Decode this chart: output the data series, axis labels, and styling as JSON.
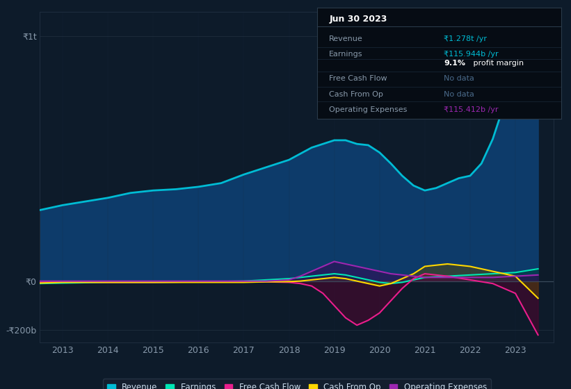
{
  "bg_color": "#0d1b2a",
  "chart_bg": "#0d1b2a",
  "grid_color": "#1e2d3d",
  "text_color": "#8899aa",
  "ylim": [
    -250000000000,
    1100000000000
  ],
  "xlim": [
    2012.5,
    2023.85
  ],
  "xticks": [
    2013,
    2014,
    2015,
    2016,
    2017,
    2018,
    2019,
    2020,
    2021,
    2022,
    2023
  ],
  "ytick_vals": [
    -200000000000,
    0,
    1000000000000
  ],
  "ytick_labels": [
    "-₹200b",
    "₹0",
    "₹1t"
  ],
  "legend_items": [
    {
      "label": "Revenue",
      "color": "#00bcd4"
    },
    {
      "label": "Earnings",
      "color": "#00e6b4"
    },
    {
      "label": "Free Cash Flow",
      "color": "#e91e8c"
    },
    {
      "label": "Cash From Op",
      "color": "#ffd700"
    },
    {
      "label": "Operating Expenses",
      "color": "#9c27b0"
    }
  ],
  "revenue_x": [
    2012.5,
    2013.0,
    2013.5,
    2014.0,
    2014.5,
    2015.0,
    2015.5,
    2016.0,
    2016.5,
    2017.0,
    2017.5,
    2018.0,
    2018.25,
    2018.5,
    2018.75,
    2019.0,
    2019.25,
    2019.5,
    2019.75,
    2020.0,
    2020.25,
    2020.5,
    2020.75,
    2021.0,
    2021.25,
    2021.5,
    2021.75,
    2022.0,
    2022.25,
    2022.5,
    2022.75,
    2023.0,
    2023.5
  ],
  "revenue_y": [
    290,
    310,
    325,
    340,
    360,
    370,
    375,
    385,
    400,
    435,
    465,
    495,
    520,
    545,
    560,
    575,
    575,
    560,
    555,
    525,
    480,
    430,
    390,
    370,
    380,
    400,
    420,
    430,
    480,
    580,
    720,
    870,
    1040
  ],
  "earnings_x": [
    2012.5,
    2013.0,
    2014.0,
    2015.0,
    2016.0,
    2017.0,
    2017.5,
    2018.0,
    2018.5,
    2018.75,
    2019.0,
    2019.25,
    2019.5,
    2019.75,
    2020.0,
    2020.25,
    2020.5,
    2020.75,
    2021.0,
    2021.5,
    2022.0,
    2022.5,
    2023.0,
    2023.5
  ],
  "earnings_y": [
    -10,
    -8,
    -5,
    -5,
    -3,
    0,
    5,
    10,
    20,
    25,
    30,
    25,
    15,
    5,
    -5,
    -10,
    -5,
    5,
    15,
    20,
    25,
    30,
    35,
    50
  ],
  "fcf_x": [
    2012.5,
    2013.0,
    2014.0,
    2015.0,
    2016.0,
    2017.0,
    2017.5,
    2018.0,
    2018.25,
    2018.5,
    2018.75,
    2019.0,
    2019.25,
    2019.5,
    2019.75,
    2020.0,
    2020.25,
    2020.5,
    2020.75,
    2021.0,
    2021.5,
    2022.0,
    2022.5,
    2023.0,
    2023.5
  ],
  "fcf_y": [
    -5,
    -3,
    -5,
    -5,
    -3,
    -3,
    -3,
    -5,
    -10,
    -20,
    -50,
    -100,
    -150,
    -180,
    -160,
    -130,
    -80,
    -30,
    10,
    30,
    20,
    5,
    -10,
    -50,
    -220
  ],
  "cfo_x": [
    2012.5,
    2013.0,
    2014.0,
    2015.0,
    2016.0,
    2017.0,
    2017.5,
    2018.0,
    2018.25,
    2018.5,
    2018.75,
    2019.0,
    2019.25,
    2019.5,
    2019.75,
    2020.0,
    2020.25,
    2020.5,
    2020.75,
    2021.0,
    2021.5,
    2022.0,
    2022.5,
    2023.0,
    2023.5
  ],
  "cfo_y": [
    -8,
    -5,
    -5,
    -5,
    -5,
    -5,
    -3,
    -2,
    0,
    5,
    10,
    15,
    10,
    0,
    -10,
    -20,
    -10,
    10,
    30,
    60,
    70,
    60,
    40,
    20,
    -70
  ],
  "opex_x": [
    2012.5,
    2013.0,
    2014.0,
    2015.0,
    2016.0,
    2017.0,
    2017.5,
    2018.0,
    2018.25,
    2018.5,
    2018.75,
    2019.0,
    2019.25,
    2019.5,
    2019.75,
    2020.0,
    2020.25,
    2020.5,
    2020.75,
    2021.0,
    2021.5,
    2022.0,
    2022.5,
    2023.0,
    2023.5
  ],
  "opex_y": [
    0,
    0,
    0,
    0,
    0,
    0,
    0,
    5,
    20,
    40,
    60,
    80,
    70,
    60,
    50,
    40,
    30,
    25,
    20,
    15,
    15,
    15,
    15,
    20,
    25
  ],
  "info_panel": {
    "title": "Jun 30 2023",
    "rows": [
      {
        "label": "Revenue",
        "value": "₹1.278t /yr",
        "value_color": "#00bcd4",
        "bold_part": ""
      },
      {
        "label": "Earnings",
        "value": "₹115.944b /yr",
        "value_color": "#00bcd4",
        "bold_part": ""
      },
      {
        "label": "",
        "value": "9.1%",
        "value2": " profit margin",
        "value_color": "#ffffff",
        "value2_color": "#ffffff",
        "bold_part": "9.1%"
      },
      {
        "label": "Free Cash Flow",
        "value": "No data",
        "value_color": "#4a6a8a",
        "bold_part": ""
      },
      {
        "label": "Cash From Op",
        "value": "No data",
        "value_color": "#4a6a8a",
        "bold_part": ""
      },
      {
        "label": "Operating Expenses",
        "value": "₹115.412b /yr",
        "value_color": "#9c27b0",
        "bold_part": ""
      }
    ]
  }
}
